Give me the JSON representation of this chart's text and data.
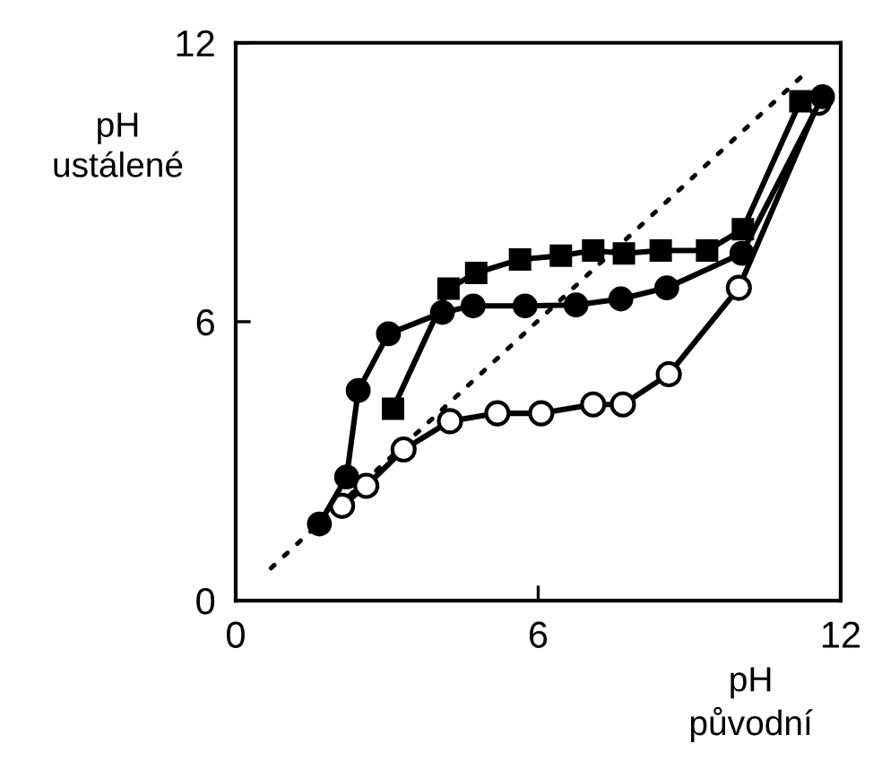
{
  "chart_data": {
    "type": "line",
    "xlabel": "pH\npůvodní",
    "ylabel": "pH\nustálené",
    "xlim": [
      0,
      12
    ],
    "ylim": [
      0,
      12
    ],
    "xticks": [
      0,
      6,
      12
    ],
    "yticks": [
      0,
      6,
      12
    ],
    "grid": false,
    "legend": false,
    "series": [
      {
        "color": "#000000",
        "marker": "circle",
        "line_style": "solid",
        "x": [
          1.66,
          2.2,
          2.43,
          3.03,
          4.1,
          4.71,
          5.74,
          6.75,
          7.64,
          8.55,
          10.04,
          11.64
        ],
        "values": [
          1.65,
          2.66,
          4.52,
          5.74,
          6.2,
          6.34,
          6.34,
          6.36,
          6.49,
          6.73,
          7.47,
          10.84
        ]
      },
      {
        "color": "#000000",
        "marker": "square",
        "line_style": "solid",
        "x": [
          3.12,
          4.22,
          4.77,
          5.64,
          6.45,
          7.09,
          7.7,
          8.43,
          9.35,
          10.06,
          11.2
        ],
        "values": [
          4.13,
          6.71,
          7.05,
          7.34,
          7.42,
          7.53,
          7.47,
          7.53,
          7.53,
          7.99,
          10.74
        ]
      },
      {
        "color": "#000000",
        "colors": [
          "#ffffff",
          "#ffffff",
          "#ffffff",
          "#ffffff",
          "#ffffff",
          "#ffffff",
          "#ffffff",
          "#ffffff",
          "#ffffff",
          "#ffffff",
          "#ffffff"
        ],
        "marker": "circle",
        "line_style": "solid",
        "x": [
          2.11,
          2.59,
          3.33,
          4.25,
          5.19,
          6.06,
          7.09,
          7.68,
          8.59,
          9.98,
          11.56
        ],
        "values": [
          2.04,
          2.47,
          3.25,
          3.86,
          4.03,
          4.03,
          4.22,
          4.22,
          4.87,
          6.73,
          10.71
        ]
      },
      {
        "color": "#000000",
        "marker": "none",
        "line_style": "dotted",
        "x": [
          0.7,
          11.35
        ],
        "values": [
          0.7,
          11.4
        ]
      }
    ]
  }
}
